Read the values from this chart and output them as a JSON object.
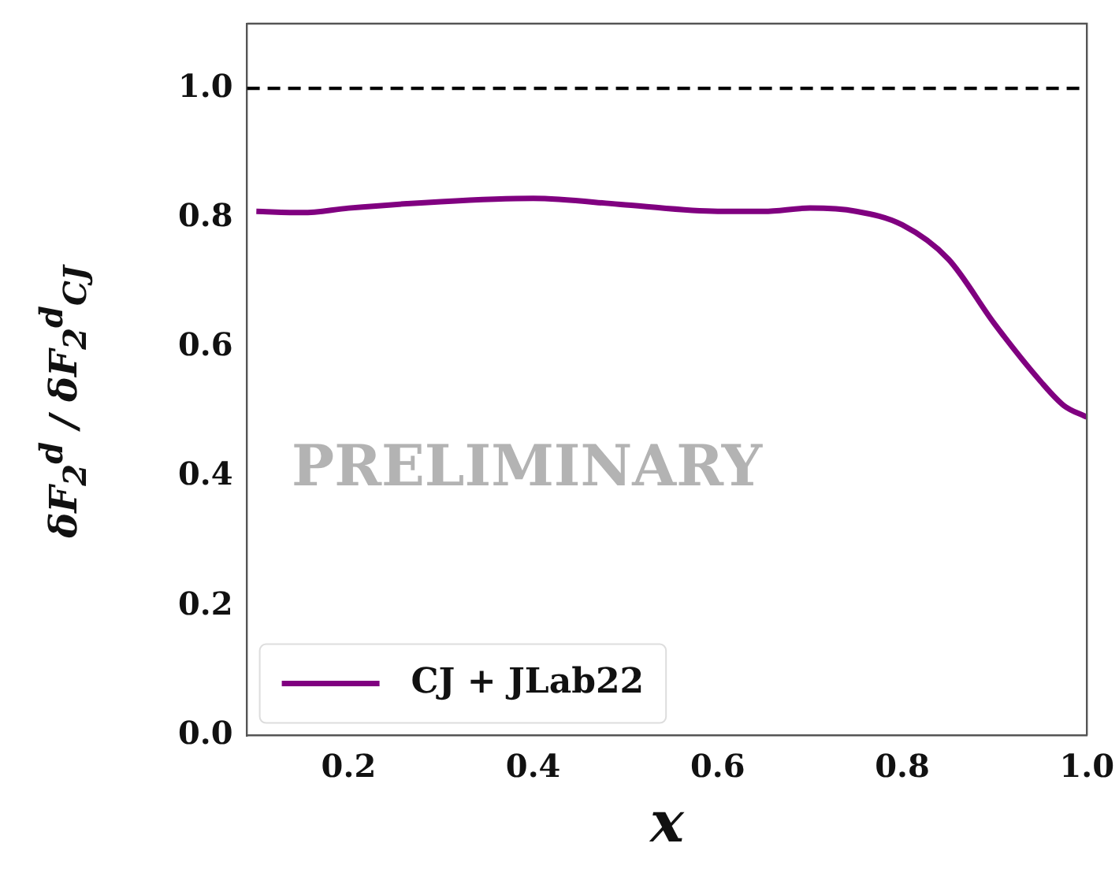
{
  "chart_data": {
    "type": "line",
    "xlabel": "x",
    "ylabel": "δF$_{2}$$^{d}$ / δF$_{2}$$^{d}$$_{CJ}$",
    "annotations": [
      "PRELIMINARY"
    ],
    "x": [
      0.1,
      0.15,
      0.2,
      0.3,
      0.4,
      0.5,
      0.6,
      0.65,
      0.7,
      0.75,
      0.8,
      0.85,
      0.9,
      0.95,
      0.975,
      1.0
    ],
    "series": [
      {
        "name": "CJ + JLab22",
        "color": "#800080",
        "values": [
          0.81,
          0.808,
          0.815,
          0.825,
          0.83,
          0.82,
          0.81,
          0.81,
          0.815,
          0.81,
          0.789,
          0.736,
          0.636,
          0.547,
          0.51,
          0.492
        ]
      }
    ],
    "xlim": [
      0.09,
      1.0
    ],
    "ylim": [
      0,
      1.1
    ],
    "xticks": [
      0.2,
      0.4,
      0.6,
      0.8,
      {
        "value": 1.0,
        "label": "1.0"
      }
    ],
    "yticks": [
      {
        "value": 0,
        "label": "0.0"
      },
      0.2,
      0.4,
      0.6,
      0.8,
      {
        "value": 1.0,
        "label": "1.0"
      }
    ],
    "ref_lines": [
      {
        "axis": "y",
        "value": 1.0,
        "color": "#000000",
        "line_style": "dashed"
      }
    ],
    "legend": "bottom left",
    "grid": false,
    "marker": "none",
    "line_style": "solid"
  }
}
